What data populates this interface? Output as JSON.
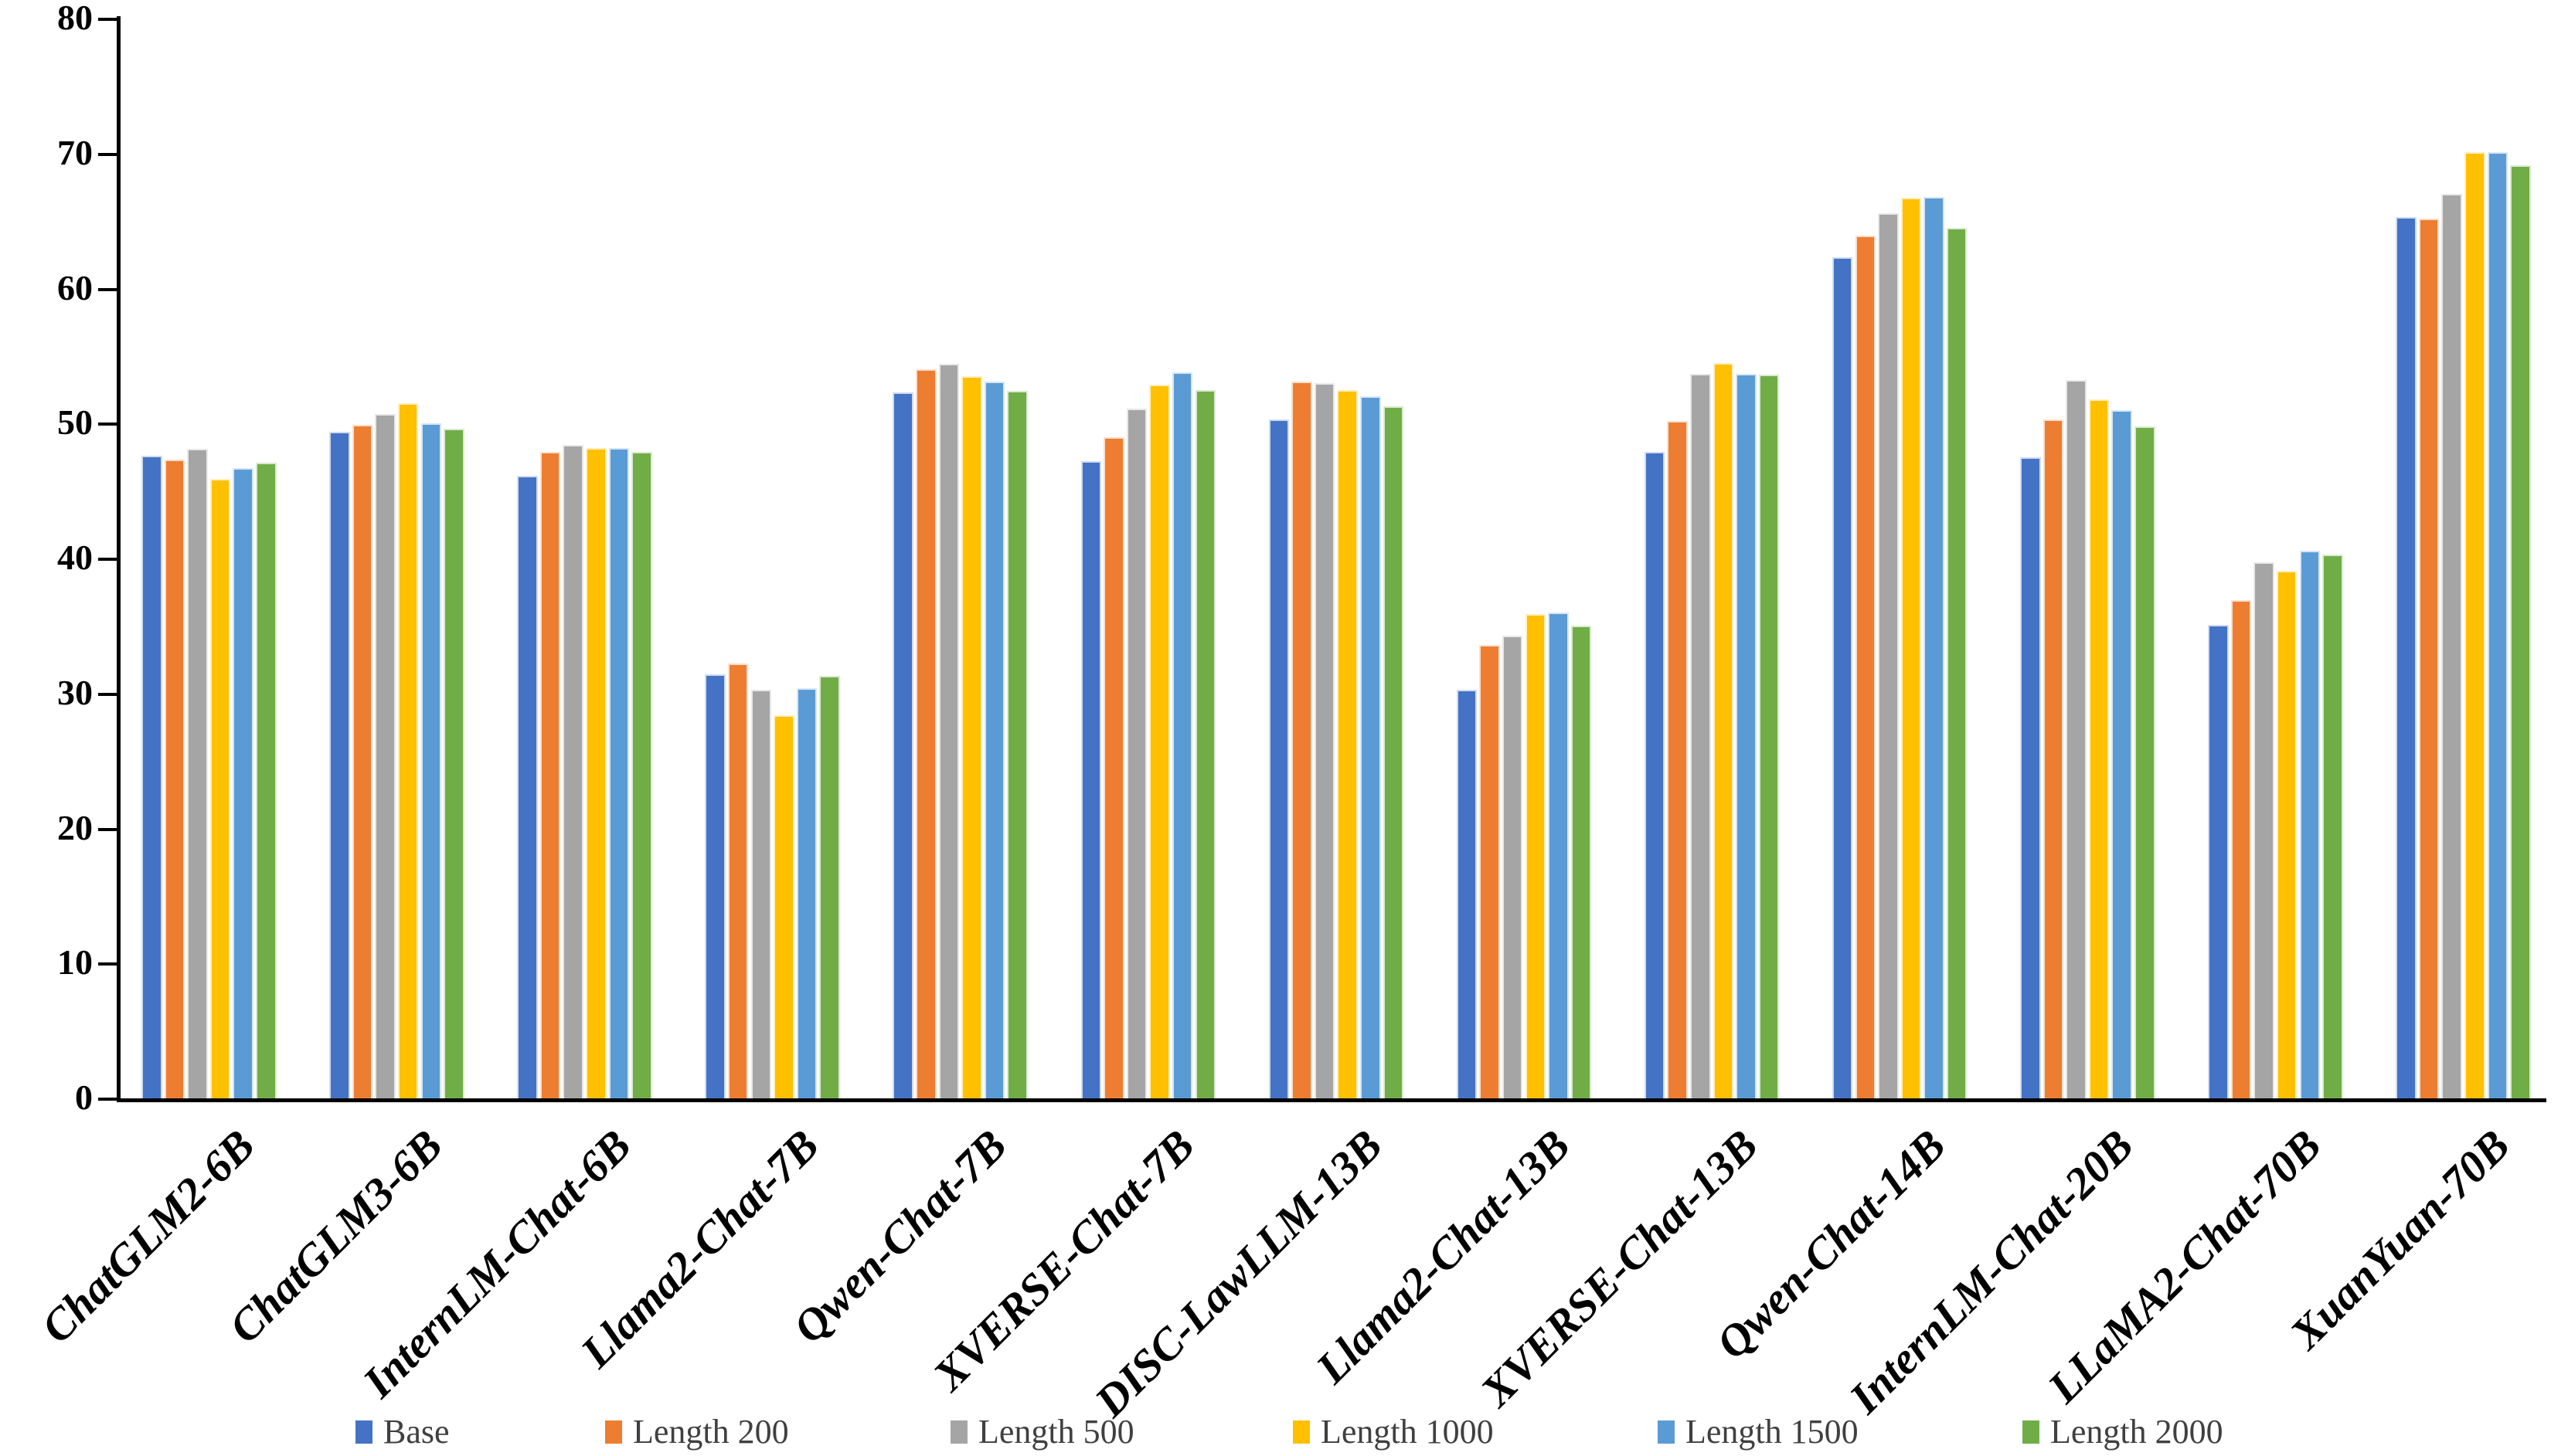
{
  "chart_data": {
    "type": "bar",
    "title": "",
    "xlabel": "",
    "ylabel": "",
    "ylim": [
      0,
      80
    ],
    "yticks": [
      0,
      10,
      20,
      30,
      40,
      50,
      60,
      70,
      80
    ],
    "grid": false,
    "legend_position": "bottom",
    "categories": [
      "ChatGLM2-6B",
      "ChatGLM3-6B",
      "InternLM-Chat-6B",
      "Llama2-Chat-7B",
      "Qwen-Chat-7B",
      "XVERSE-Chat-7B",
      "DISC-LawLLM-13B",
      "Llama2-Chat-13B",
      "XVERSE-Chat-13B",
      "Qwen-Chat-14B",
      "InternLM-Chat-20B",
      "LLaMA2-Chat-70B",
      "XuanYuan-70B"
    ],
    "series": [
      {
        "name": "Base",
        "color": "#4472C4",
        "values": [
          47.6,
          49.4,
          46.1,
          31.4,
          52.3,
          47.2,
          50.3,
          30.3,
          47.9,
          62.3,
          47.5,
          35.1,
          65.3
        ]
      },
      {
        "name": "Length 200",
        "color": "#ED7D31",
        "values": [
          47.3,
          49.9,
          47.9,
          32.2,
          54.0,
          49.0,
          53.1,
          33.6,
          50.2,
          63.9,
          50.3,
          36.9,
          65.2
        ]
      },
      {
        "name": "Length 500",
        "color": "#A5A5A5",
        "values": [
          48.1,
          50.7,
          48.4,
          30.3,
          54.4,
          51.1,
          53.0,
          34.3,
          53.7,
          65.6,
          53.2,
          39.7,
          67.0
        ]
      },
      {
        "name": "Length 1000",
        "color": "#FFC000",
        "values": [
          45.9,
          51.5,
          48.2,
          28.4,
          53.5,
          52.9,
          52.5,
          35.9,
          54.5,
          66.7,
          51.8,
          39.1,
          70.1
        ]
      },
      {
        "name": "Length 1500",
        "color": "#5B9BD5",
        "values": [
          46.7,
          50.0,
          48.2,
          30.4,
          53.1,
          53.8,
          52.0,
          36.0,
          53.7,
          66.8,
          51.0,
          40.6,
          70.1
        ]
      },
      {
        "name": "Length 2000",
        "color": "#70AD47",
        "values": [
          47.1,
          49.6,
          47.9,
          31.3,
          52.4,
          52.5,
          51.3,
          35.0,
          53.6,
          64.5,
          49.8,
          40.3,
          69.1
        ]
      }
    ]
  }
}
